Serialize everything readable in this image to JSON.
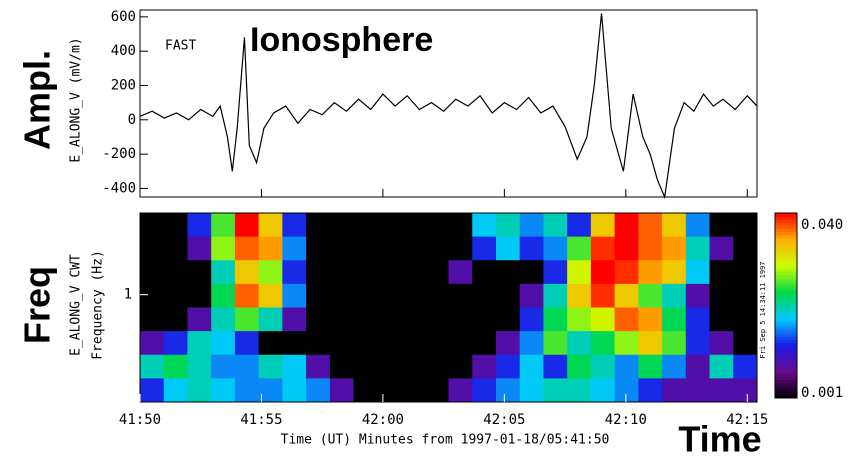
{
  "chart_data": [
    {
      "type": "line",
      "side_label": "Ampl.",
      "ylabel": "E_ALONG_V (mV/m)",
      "annotations": [
        "FAST",
        "Ionosphere"
      ],
      "color": "#000000",
      "xlim": [
        0,
        25.4
      ],
      "xticks": [
        0,
        5,
        10,
        15,
        20,
        25
      ],
      "ylim": [
        -450,
        640
      ],
      "yticks": [
        -400,
        -200,
        0,
        200,
        400,
        600
      ],
      "x": [
        0,
        0.5,
        1,
        1.5,
        2,
        2.5,
        3,
        3.3,
        3.6,
        3.8,
        4.0,
        4.3,
        4.5,
        4.8,
        5.1,
        5.5,
        6,
        6.5,
        7,
        7.5,
        8,
        8.5,
        9,
        9.5,
        10,
        10.5,
        11,
        11.5,
        12,
        12.5,
        13,
        13.5,
        14,
        14.5,
        15,
        15.5,
        16,
        16.5,
        17,
        17.5,
        18.0,
        18.4,
        18.7,
        19.0,
        19.4,
        19.9,
        20.3,
        20.7,
        21.0,
        21.3,
        21.6,
        22.0,
        22.4,
        22.8,
        23.2,
        23.6,
        24,
        24.5,
        25,
        25.4
      ],
      "values": [
        20,
        50,
        10,
        40,
        0,
        60,
        20,
        80,
        -100,
        -300,
        -50,
        480,
        -150,
        -250,
        -50,
        40,
        80,
        -20,
        60,
        30,
        100,
        50,
        120,
        60,
        150,
        80,
        140,
        60,
        100,
        50,
        120,
        80,
        140,
        40,
        100,
        60,
        130,
        40,
        80,
        -40,
        -230,
        -100,
        200,
        620,
        -50,
        -300,
        150,
        -100,
        -200,
        -350,
        -450,
        -50,
        100,
        50,
        150,
        80,
        120,
        60,
        140,
        80
      ]
    },
    {
      "type": "heatmap",
      "side_label": "Freq",
      "ylabel": "E_ALONG_V CWT",
      "ylabel2": "Frequency (Hz)",
      "xlabel": "Time (UT) Minutes from 1997-01-18/05:41:50",
      "xlabel_big": "Time",
      "stamp": "Fri Sep  5 14:34:11 1997",
      "xlim": [
        0,
        25.4
      ],
      "xticks": [
        {
          "value": 0,
          "label": "41:50"
        },
        {
          "value": 5,
          "label": "41:55"
        },
        {
          "value": 10,
          "label": "42:00"
        },
        {
          "value": 15,
          "label": "42:05"
        },
        {
          "value": 20,
          "label": "42:10"
        },
        {
          "value": 25,
          "label": "42:15"
        }
      ],
      "ylim": [
        0.3,
        2.5
      ],
      "yticks": [
        1
      ],
      "log_y": true,
      "zlim": [
        0.001,
        0.04
      ],
      "zticks": [
        0.001,
        {
          "value": 0.04,
          "label": "0.040"
        }
      ],
      "log_z": true,
      "colormap": [
        "#000000",
        "#6a0a8c",
        "#1a1ae6",
        "#00c8ff",
        "#00d84a",
        "#c8ff00",
        "#ffb000",
        "#ff0000"
      ],
      "z": [
        [
          0.001,
          0.001,
          0.003,
          0.01,
          0.04,
          0.02,
          0.003,
          0.001,
          0.001,
          0.001,
          0.001,
          0.001,
          0.001,
          0.001,
          0.005,
          0.006,
          0.004,
          0.006,
          0.003,
          0.02,
          0.04,
          0.03,
          0.02,
          0.004,
          0.001,
          0.001
        ],
        [
          0.001,
          0.001,
          0.002,
          0.012,
          0.03,
          0.025,
          0.004,
          0.001,
          0.001,
          0.001,
          0.001,
          0.001,
          0.001,
          0.001,
          0.003,
          0.005,
          0.003,
          0.004,
          0.01,
          0.035,
          0.04,
          0.03,
          0.025,
          0.006,
          0.002,
          0.001
        ],
        [
          0.001,
          0.001,
          0.001,
          0.006,
          0.02,
          0.012,
          0.003,
          0.001,
          0.001,
          0.001,
          0.001,
          0.001,
          0.001,
          0.002,
          0.001,
          0.001,
          0.001,
          0.003,
          0.015,
          0.04,
          0.035,
          0.025,
          0.02,
          0.005,
          0.001,
          0.001
        ],
        [
          0.001,
          0.001,
          0.001,
          0.008,
          0.03,
          0.02,
          0.004,
          0.001,
          0.001,
          0.001,
          0.001,
          0.001,
          0.001,
          0.001,
          0.001,
          0.001,
          0.002,
          0.006,
          0.02,
          0.035,
          0.02,
          0.01,
          0.006,
          0.002,
          0.001,
          0.001
        ],
        [
          0.001,
          0.001,
          0.002,
          0.006,
          0.01,
          0.006,
          0.002,
          0.001,
          0.001,
          0.001,
          0.001,
          0.001,
          0.001,
          0.001,
          0.001,
          0.001,
          0.003,
          0.008,
          0.012,
          0.015,
          0.03,
          0.025,
          0.008,
          0.003,
          0.001,
          0.001
        ],
        [
          0.002,
          0.003,
          0.006,
          0.005,
          0.003,
          0.001,
          0.001,
          0.001,
          0.001,
          0.001,
          0.001,
          0.001,
          0.001,
          0.001,
          0.001,
          0.002,
          0.004,
          0.01,
          0.006,
          0.008,
          0.012,
          0.02,
          0.01,
          0.003,
          0.002,
          0.001
        ],
        [
          0.006,
          0.008,
          0.006,
          0.004,
          0.004,
          0.006,
          0.005,
          0.002,
          0.001,
          0.001,
          0.001,
          0.001,
          0.001,
          0.001,
          0.002,
          0.003,
          0.005,
          0.003,
          0.008,
          0.006,
          0.004,
          0.008,
          0.004,
          0.002,
          0.006,
          0.003
        ],
        [
          0.003,
          0.005,
          0.006,
          0.005,
          0.004,
          0.004,
          0.005,
          0.004,
          0.002,
          0.001,
          0.001,
          0.001,
          0.001,
          0.002,
          0.003,
          0.004,
          0.005,
          0.006,
          0.006,
          0.005,
          0.004,
          0.003,
          0.002,
          0.002,
          0.002,
          0.002
        ]
      ]
    }
  ]
}
